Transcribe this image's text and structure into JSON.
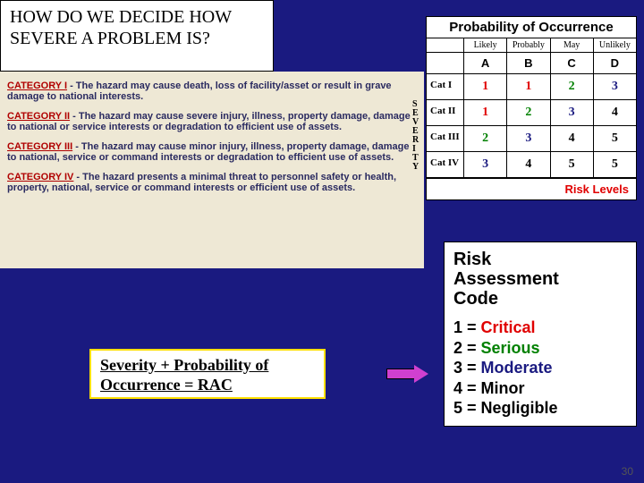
{
  "title": "HOW DO WE DECIDE HOW SEVERE A PROBLEM IS?",
  "slide_number": "30",
  "categories": [
    {
      "label": "CATEGORY I",
      "text": " - The hazard may cause death, loss of facility/asset or result in grave damage to national interests."
    },
    {
      "label": "CATEGORY II",
      "text": " - The hazard may cause severe injury, illness, property damage, damage to national or service interests or degradation to efficient use of assets."
    },
    {
      "label": "CATEGORY III",
      "text": " - The hazard may cause minor injury, illness, property damage, damage to national, service or command interests or degradation to efficient use of assets."
    },
    {
      "label": "CATEGORY IV",
      "text": " - The hazard presents a minimal threat to personnel safety or health, property, national, service or command interests or efficient use of assets."
    }
  ],
  "matrix": {
    "title": "Probability of Occurrence",
    "col_headers": [
      "Likely",
      "Probably",
      "May",
      "Unlikely"
    ],
    "col_letters": [
      "A",
      "B",
      "C",
      "D"
    ],
    "severity_label": "SEVERITY",
    "row_labels": [
      "Cat I",
      "Cat II",
      "Cat III",
      "Cat IV"
    ],
    "cells": [
      [
        {
          "v": "1",
          "c": "c-red"
        },
        {
          "v": "1",
          "c": "c-red"
        },
        {
          "v": "2",
          "c": "c-green"
        },
        {
          "v": "3",
          "c": "c-blue"
        }
      ],
      [
        {
          "v": "1",
          "c": "c-red"
        },
        {
          "v": "2",
          "c": "c-green"
        },
        {
          "v": "3",
          "c": "c-blue"
        },
        {
          "v": "4",
          "c": "c-black"
        }
      ],
      [
        {
          "v": "2",
          "c": "c-green"
        },
        {
          "v": "3",
          "c": "c-blue"
        },
        {
          "v": "4",
          "c": "c-black"
        },
        {
          "v": "5",
          "c": "c-black"
        }
      ],
      [
        {
          "v": "3",
          "c": "c-blue"
        },
        {
          "v": "4",
          "c": "c-black"
        },
        {
          "v": "5",
          "c": "c-black"
        },
        {
          "v": "5",
          "c": "c-black"
        }
      ]
    ],
    "footer": "Risk Levels"
  },
  "formula": "Severity + Probability of Occurrence = RAC",
  "rac": {
    "title_line1": "Risk",
    "title_line2": "Assessment",
    "title_line3": "Code",
    "items": [
      {
        "num": "1",
        "label": "Critical",
        "color": "#e00000"
      },
      {
        "num": "2",
        "label": "Serious",
        "color": "#008000"
      },
      {
        "num": "3",
        "label": "Moderate",
        "color": "#1a1a80"
      },
      {
        "num": "4",
        "label": "Minor",
        "color": "#000000"
      },
      {
        "num": "5",
        "label": "Negligible",
        "color": "#000000"
      }
    ]
  },
  "colors": {
    "page_bg": "#1a1a80",
    "categories_bg": "#eee8d5",
    "highlight_border": "#ffe000",
    "arrow_fill": "#d040d0",
    "cat_label": "#b00000",
    "cat_text": "#2a2a60"
  }
}
